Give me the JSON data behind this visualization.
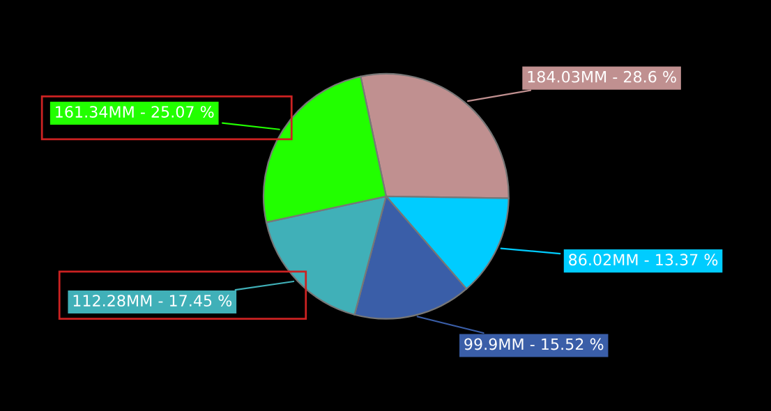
{
  "chart_data": {
    "type": "pie",
    "categories": [
      null,
      null,
      null,
      null,
      null
    ],
    "values": [
      184.03,
      86.02,
      99.9,
      112.28,
      161.34
    ],
    "colors": [
      "#c09090",
      "#00ccff",
      "#3a5ea8",
      "#40b0b8",
      "#22ff00"
    ],
    "value_labels": [
      "184.03MM - 28.6 %",
      "86.02MM - 13.37 %",
      "99.9MM - 15.52 %",
      "112.28MM - 17.45 %",
      "161.34MM - 25.07 %"
    ]
  }
}
